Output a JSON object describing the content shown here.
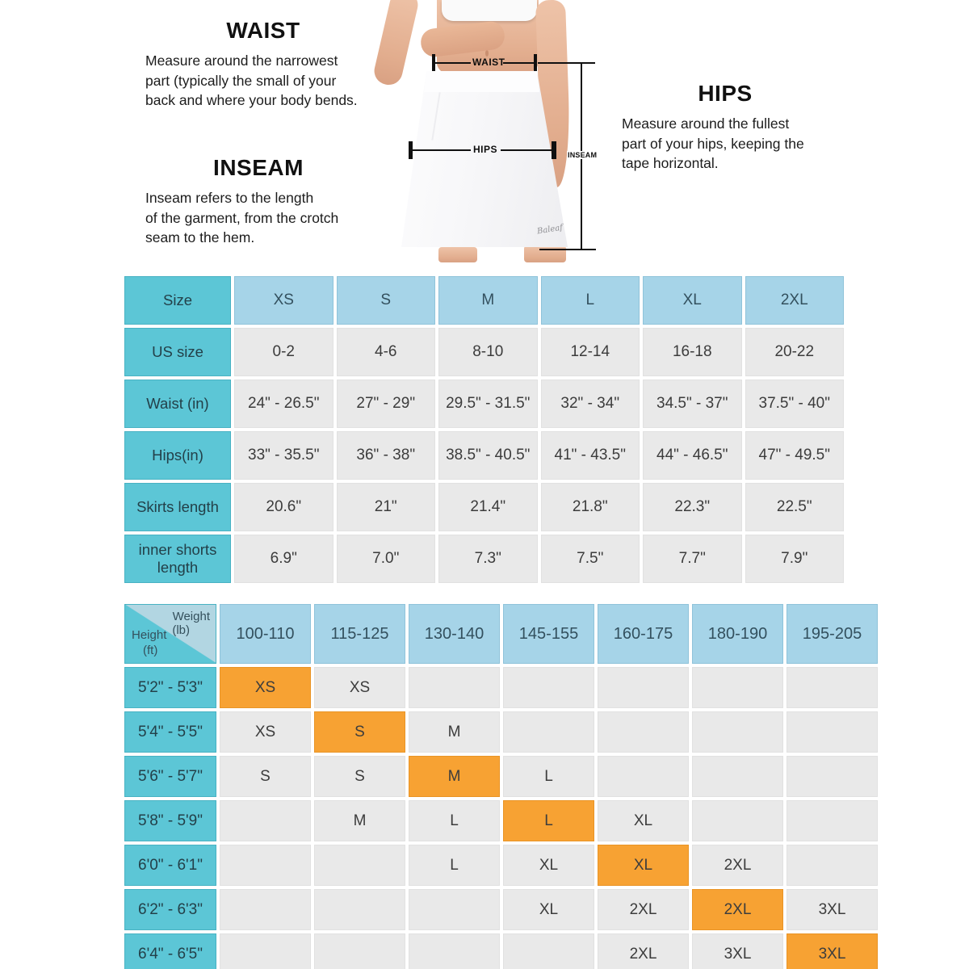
{
  "guides": {
    "waist": {
      "title": "WAIST",
      "text": "Measure around the narrowest\npart (typically the small of your\nback and where your body bends."
    },
    "inseam": {
      "title": "INSEAM",
      "text": "Inseam refers to the length\nof the garment, from the crotch\nseam to the hem."
    },
    "hips": {
      "title": "HIPS",
      "text": "Measure around the fullest\npart of your hips, keeping the\ntape horizontal."
    }
  },
  "figure": {
    "waist_label": "WAIST",
    "hips_label": "HIPS",
    "inseam_label": "INSEAM",
    "brand": "Baleaf"
  },
  "size_table": {
    "header": [
      "Size",
      "XS",
      "S",
      "M",
      "L",
      "XL",
      "2XL"
    ],
    "rows": [
      {
        "label": "US size",
        "values": [
          "0-2",
          "4-6",
          "8-10",
          "12-14",
          "16-18",
          "20-22"
        ]
      },
      {
        "label": "Waist (in)",
        "values": [
          "24\" - 26.5\"",
          "27\" - 29\"",
          "29.5\" - 31.5\"",
          "32\" - 34\"",
          "34.5\" - 37\"",
          "37.5\" - 40\""
        ]
      },
      {
        "label": "Hips(in)",
        "values": [
          "33\" - 35.5\"",
          "36\" - 38\"",
          "38.5\" - 40.5\"",
          "41\" - 43.5\"",
          "44\" - 46.5\"",
          "47\" - 49.5\""
        ]
      },
      {
        "label": "Skirts length",
        "values": [
          "20.6\"",
          "21\"",
          "21.4\"",
          "21.8\"",
          "22.3\"",
          "22.5\""
        ]
      },
      {
        "label": "inner shorts length",
        "values": [
          "6.9\"",
          "7.0\"",
          "7.3\"",
          "7.5\"",
          "7.7\"",
          "7.9\""
        ]
      }
    ]
  },
  "fit_matrix": {
    "corner": {
      "weight": "Weight",
      "weight_unit": "(lb)",
      "height": "Height",
      "height_unit": "(ft)"
    },
    "weight_columns": [
      "100-110",
      "115-125",
      "130-140",
      "145-155",
      "160-175",
      "180-190",
      "195-205"
    ],
    "rows": [
      {
        "height": "5'2\" - 5'3\"",
        "cells": [
          "XS",
          "XS",
          "",
          "",
          "",
          "",
          ""
        ],
        "highlight": 0
      },
      {
        "height": "5'4\" - 5'5\"",
        "cells": [
          "XS",
          "S",
          "M",
          "",
          "",
          "",
          ""
        ],
        "highlight": 1
      },
      {
        "height": "5'6\" - 5'7\"",
        "cells": [
          "S",
          "S",
          "M",
          "L",
          "",
          "",
          ""
        ],
        "highlight": 2
      },
      {
        "height": "5'8\" - 5'9\"",
        "cells": [
          "",
          "M",
          "L",
          "L",
          "XL",
          "",
          ""
        ],
        "highlight": 3
      },
      {
        "height": "6'0\" - 6'1\"",
        "cells": [
          "",
          "",
          "L",
          "XL",
          "XL",
          "2XL",
          ""
        ],
        "highlight": 4
      },
      {
        "height": "6'2\" - 6'3\"",
        "cells": [
          "",
          "",
          "",
          "XL",
          "2XL",
          "2XL",
          "3XL"
        ],
        "highlight": 5
      },
      {
        "height": "6'4\" - 6'5\"",
        "cells": [
          "",
          "",
          "",
          "",
          "2XL",
          "3XL",
          "3XL"
        ],
        "highlight": 6
      }
    ]
  },
  "colors": {
    "teal": "#5cc6d6",
    "header_blue": "#a6d4e8",
    "cell_gray": "#e9e9e9",
    "highlight_orange": "#f7a233"
  }
}
